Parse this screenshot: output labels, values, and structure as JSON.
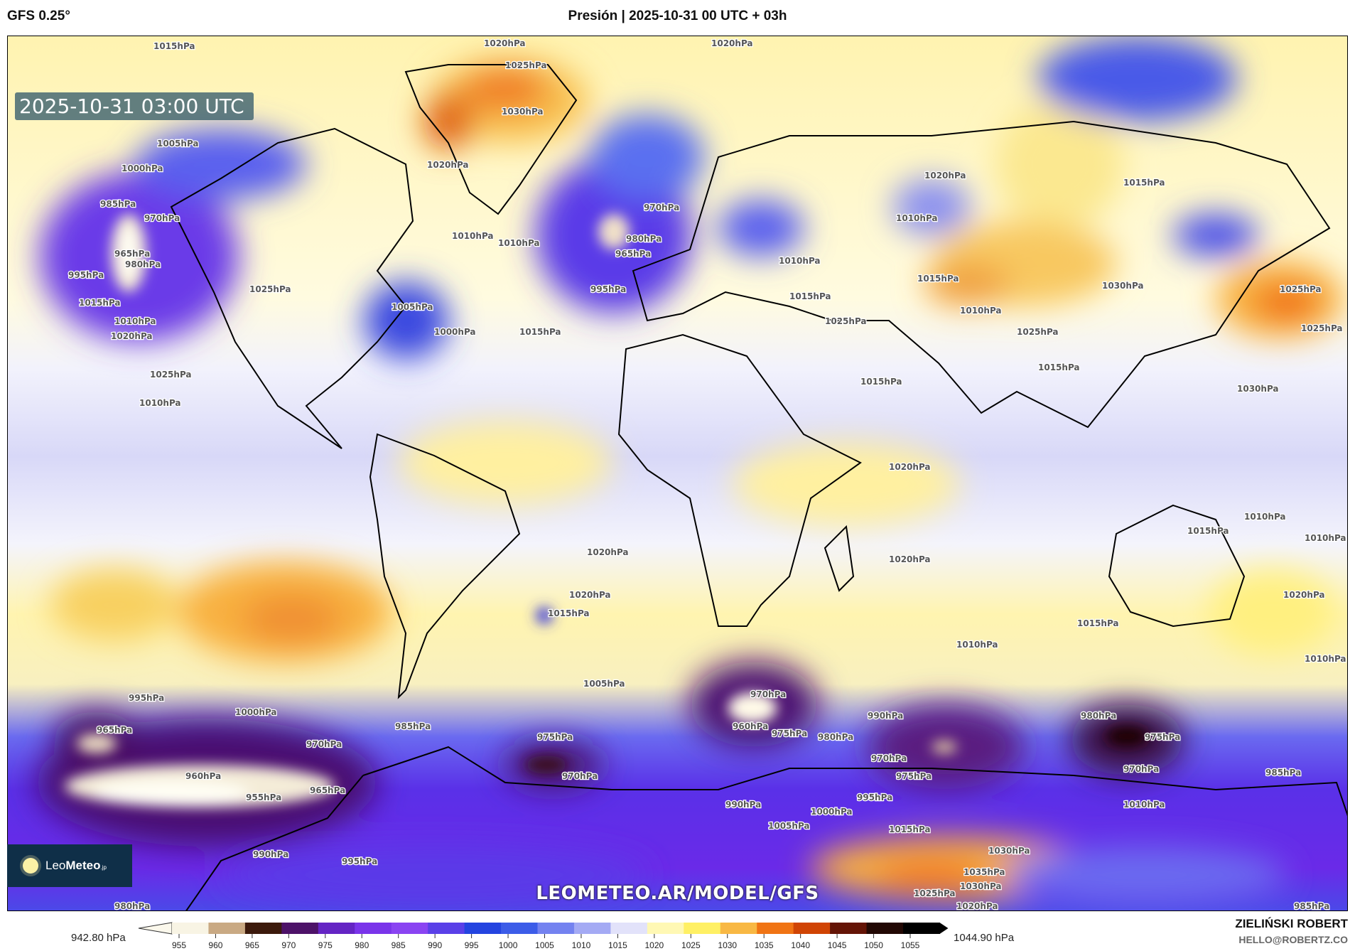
{
  "header": {
    "model": "GFS 0.25°",
    "title": "Presión | 2025-10-31 00 UTC + 03h"
  },
  "map": {
    "timestamp": "2025-10-31 03:00 UTC",
    "watermark": "LEOMETEO.AR/MODEL/GFS",
    "logo": {
      "light": "Leo",
      "bold": "Meteo",
      "suffix": ".jp"
    },
    "isobar_labels": [
      "1015hPa",
      "1020hPa",
      "1020hPa",
      "1025hPa",
      "1030hPa",
      "1005hPa",
      "1000hPa",
      "985hPa",
      "970hPa",
      "965hPa",
      "980hPa",
      "995hPa",
      "1010hPa",
      "1020hPa",
      "1010hPa",
      "970hPa",
      "965hPa",
      "980hPa",
      "995hPa",
      "1010hPa",
      "1015hPa",
      "1000hPa",
      "1025hPa",
      "1015hPa",
      "1005hPa",
      "1020hPa",
      "1025hPa",
      "1010hPa",
      "1015hPa",
      "1010hPa",
      "1025hPa",
      "1030hPa",
      "1025hPa",
      "1010hPa",
      "1015hPa",
      "1020hPa",
      "1015hPa",
      "1010hPa",
      "1025hPa",
      "1025hPa",
      "1030hPa",
      "1015hPa",
      "1020hPa",
      "1005hPa",
      "1000hPa",
      "995hPa",
      "965hPa",
      "970hPa",
      "960hPa",
      "955hPa",
      "965hPa",
      "985hPa",
      "975hPa",
      "970hPa",
      "970hPa",
      "960hPa",
      "975hPa",
      "990hPa",
      "980hPa",
      "970hPa",
      "975hPa",
      "980hPa",
      "975hPa",
      "970hPa",
      "985hPa",
      "1010hPa",
      "990hPa",
      "1000hPa",
      "995hPa",
      "1005hPa",
      "1015hPa",
      "1030hPa",
      "1035hPa",
      "1030hPa",
      "1025hPa",
      "1020hPa",
      "990hPa",
      "995hPa",
      "980hPa",
      "985hPa",
      "1020hPa",
      "1020hPa",
      "1015hPa",
      "1010hPa",
      "1020hPa",
      "1015hPa",
      "1010hPa",
      "1015hPa",
      "1020hPa",
      "1010hPa",
      "1010hPa",
      "1015hPa"
    ]
  },
  "colorbar": {
    "min_label": "942.80 hPa",
    "max_label": "1044.90 hPa",
    "ticks": [
      "955",
      "960",
      "965",
      "970",
      "975",
      "980",
      "985",
      "990",
      "995",
      "1000",
      "1005",
      "1010",
      "1015",
      "1020",
      "1025",
      "1030",
      "1035",
      "1040",
      "1045",
      "1050",
      "1055"
    ],
    "colors": [
      "#f8f4e4",
      "#c9a983",
      "#3c1a0c",
      "#4d1268",
      "#6424c4",
      "#7a34ea",
      "#8a44f2",
      "#5a40e8",
      "#2444e0",
      "#3c5ce8",
      "#7482f0",
      "#a4aaf4",
      "#e2e2fa",
      "#fff8b4",
      "#fff064",
      "#f8b844",
      "#f07414",
      "#d04404",
      "#641406",
      "#220804",
      "#000000"
    ]
  },
  "credits": {
    "author": "ZIELIŃSKI ROBERT",
    "email": "HELLO@ROBERTZ.CO"
  }
}
